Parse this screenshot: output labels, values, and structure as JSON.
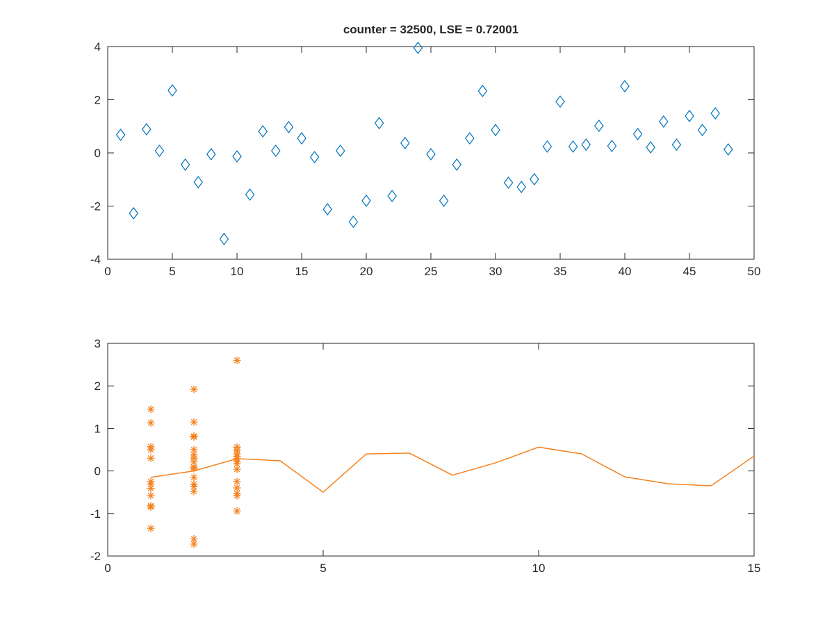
{
  "chart_data": [
    {
      "type": "scatter",
      "title": "counter = 32500, LSE = 0.72001",
      "xlabel": "",
      "ylabel": "",
      "xlim": [
        0,
        50
      ],
      "ylim": [
        -4,
        4
      ],
      "xticks": [
        0,
        5,
        10,
        15,
        20,
        25,
        30,
        35,
        40,
        45,
        50
      ],
      "yticks": [
        -4,
        -2,
        0,
        2,
        4
      ],
      "marker": "diamond",
      "color": "#0072BD",
      "x": [
        1,
        2,
        3,
        4,
        5,
        6,
        7,
        8,
        9,
        10,
        11,
        12,
        13,
        14,
        15,
        16,
        17,
        18,
        19,
        20,
        21,
        22,
        23,
        24,
        25,
        26,
        27,
        28,
        29,
        30,
        31,
        32,
        33,
        34,
        35,
        36,
        37,
        38,
        39,
        40,
        41,
        42,
        43,
        44,
        45,
        46,
        47,
        48
      ],
      "y": [
        0.68,
        -2.27,
        0.89,
        0.08,
        2.35,
        -0.44,
        -1.1,
        -0.05,
        -3.24,
        -0.13,
        -1.57,
        0.81,
        0.08,
        0.97,
        0.55,
        -0.16,
        -2.12,
        0.08,
        -2.59,
        -1.8,
        1.12,
        -1.62,
        0.37,
        3.95,
        -0.05,
        -1.8,
        -0.44,
        0.55,
        2.33,
        0.86,
        -1.12,
        -1.28,
        -0.99,
        0.24,
        1.93,
        0.24,
        0.31,
        1.02,
        0.26,
        2.51,
        0.71,
        0.21,
        1.18,
        0.31,
        1.39,
        0.86,
        1.49,
        0.13
      ]
    },
    {
      "type": "line",
      "title": "",
      "xlabel": "",
      "ylabel": "",
      "xlim": [
        0,
        15
      ],
      "ylim": [
        -2,
        3
      ],
      "xticks": [
        0,
        5,
        10,
        15
      ],
      "yticks": [
        -2,
        -1,
        0,
        1,
        2,
        3
      ],
      "color": "#F5821F",
      "line": {
        "x": [
          1,
          2,
          3,
          4,
          5,
          6,
          7,
          8,
          9,
          10,
          11,
          12,
          13,
          14,
          15
        ],
        "y": [
          -0.15,
          0.0,
          0.29,
          0.24,
          -0.5,
          0.4,
          0.42,
          -0.1,
          0.19,
          0.56,
          0.4,
          -0.14,
          -0.3,
          -0.35,
          0.35
        ]
      },
      "scatter": {
        "marker": "asterisk",
        "points": [
          {
            "x": 1,
            "y": [
              1.45,
              1.13,
              0.57,
              0.5,
              0.3,
              -0.25,
              -0.31,
              -0.41,
              -0.58,
              -0.82,
              -0.85,
              -1.35
            ]
          },
          {
            "x": 2,
            "y": [
              1.92,
              1.15,
              0.82,
              0.8,
              0.5,
              0.38,
              0.3,
              0.21,
              0.09,
              0.06,
              -0.15,
              -0.31,
              -0.37,
              -0.48,
              -1.6,
              -1.72
            ]
          },
          {
            "x": 3,
            "y": [
              2.6,
              0.56,
              0.48,
              0.4,
              0.34,
              0.29,
              0.22,
              0.17,
              0.04,
              -0.25,
              -0.4,
              -0.53,
              -0.58,
              -0.94
            ]
          }
        ]
      }
    }
  ]
}
